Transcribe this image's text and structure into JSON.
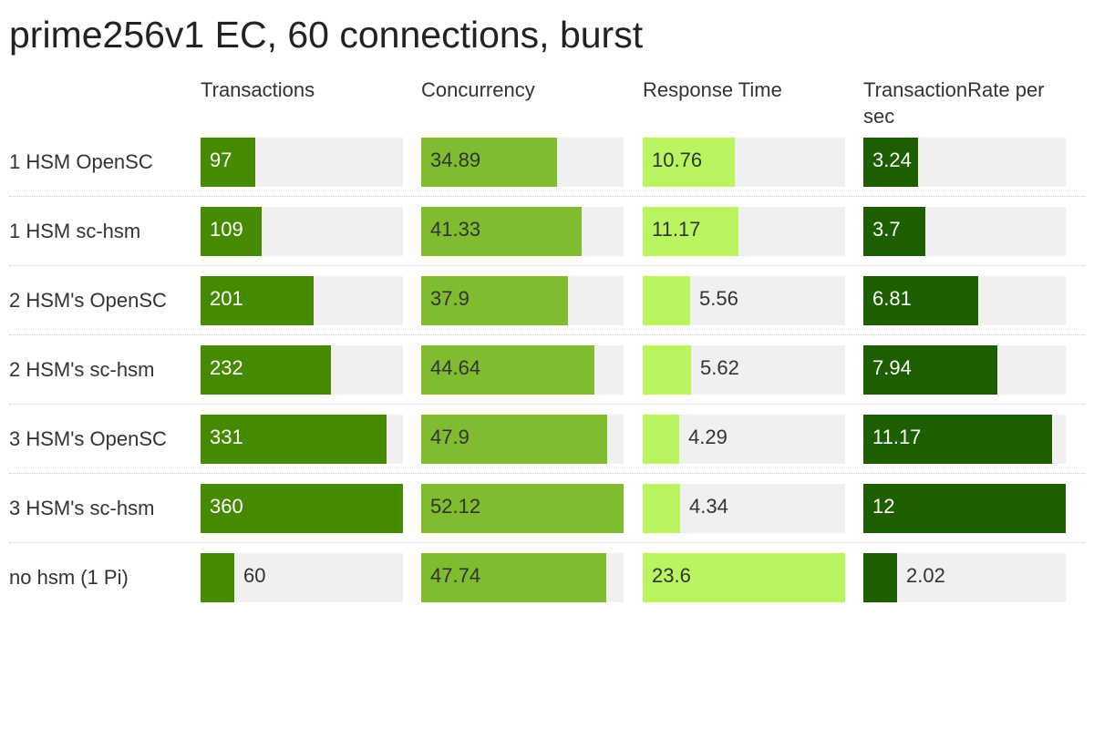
{
  "chart_data": {
    "type": "table",
    "title": "prime256v1 EC, 60 connections, burst",
    "columns": [
      {
        "label": "Transactions",
        "color": "#458a00",
        "max": 360,
        "values": [
          97,
          109,
          201,
          232,
          331,
          360,
          60
        ]
      },
      {
        "label": "Concurrency",
        "color": "#80bc2f",
        "max": 52.12,
        "values": [
          34.89,
          41.33,
          37.9,
          44.64,
          47.9,
          52.12,
          47.74
        ]
      },
      {
        "label": "Response Time",
        "color": "#b9f561",
        "max": 23.6,
        "values": [
          10.76,
          11.17,
          5.56,
          5.62,
          4.29,
          4.34,
          23.6
        ]
      },
      {
        "label": "TransactionRate per sec",
        "color": "#1d5e00",
        "max": 12,
        "values": [
          3.24,
          3.7,
          6.81,
          7.94,
          11.17,
          12,
          2.02
        ]
      }
    ],
    "rows": [
      "1 HSM OpenSC",
      "1 HSM sc-hsm",
      "2 HSM's OpenSC",
      "2 HSM's sc-hsm",
      "3 HSM's OpenSC",
      "3 HSM's sc-hsm",
      "no hsm (1 Pi)"
    ],
    "display_values": [
      [
        "97",
        "34.89",
        "10.76",
        "3.24"
      ],
      [
        "109",
        "41.33",
        "11.17",
        "3.7"
      ],
      [
        "201",
        "37.9",
        "5.56",
        "6.81"
      ],
      [
        "232",
        "44.64",
        "5.62",
        "7.94"
      ],
      [
        "331",
        "47.9",
        "4.29",
        "11.17"
      ],
      [
        "360",
        "52.12",
        "4.34",
        "12"
      ],
      [
        "60",
        "47.74",
        "23.6",
        "2.02"
      ]
    ],
    "track_color": "#f0f0f0"
  }
}
